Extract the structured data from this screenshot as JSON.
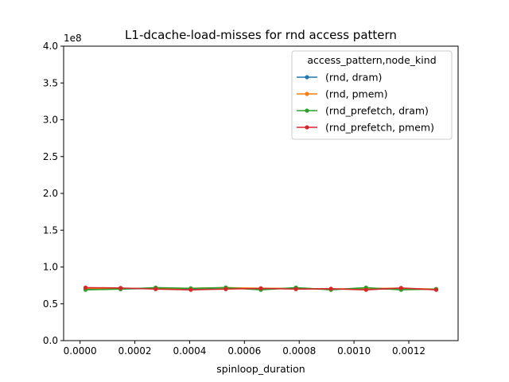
{
  "chart_data": {
    "type": "line",
    "title": "L1-dcache-load-misses for rnd access pattern",
    "xlabel": "spinloop_duration",
    "ylabel": "",
    "y_offset_label": "1e8",
    "xlim": [
      -6e-05,
      0.00138
    ],
    "ylim": [
      0,
      4.0
    ],
    "xticks": [
      0.0,
      0.0002,
      0.0004,
      0.0006,
      0.0008,
      0.001,
      0.0012
    ],
    "xtick_labels": [
      "0.0000",
      "0.0002",
      "0.0004",
      "0.0006",
      "0.0008",
      "0.0010",
      "0.0012"
    ],
    "yticks": [
      0.0,
      0.5,
      1.0,
      1.5,
      2.0,
      2.5,
      3.0,
      3.5,
      4.0
    ],
    "ytick_labels": [
      "0.0",
      "0.5",
      "1.0",
      "1.5",
      "2.0",
      "2.5",
      "3.0",
      "3.5",
      "4.0"
    ],
    "grid": false,
    "legend": {
      "title": "access_pattern,node_kind",
      "position": "top-right"
    },
    "x": [
      2e-05,
      0.000148,
      0.000276,
      0.000404,
      0.000532,
      0.00066,
      0.000788,
      0.000916,
      0.001044,
      0.001172,
      0.0013
    ],
    "series": [
      {
        "name": "(rnd, dram)",
        "color": "#1f77b4",
        "values": [
          0.7,
          0.7,
          0.71,
          0.7,
          0.72,
          0.7,
          0.71,
          0.7,
          0.7,
          0.7,
          0.7
        ]
      },
      {
        "name": "(rnd, pmem)",
        "color": "#ff7f0e",
        "values": [
          0.71,
          0.71,
          0.71,
          0.71,
          0.72,
          0.71,
          0.71,
          0.7,
          0.71,
          0.71,
          0.7
        ]
      },
      {
        "name": "(rnd_prefetch, dram)",
        "color": "#2ca02c",
        "values": [
          0.69,
          0.7,
          0.72,
          0.71,
          0.72,
          0.69,
          0.72,
          0.69,
          0.72,
          0.69,
          0.7
        ]
      },
      {
        "name": "(rnd_prefetch, pmem)",
        "color": "#d62728",
        "values": [
          0.72,
          0.715,
          0.7,
          0.69,
          0.7,
          0.71,
          0.7,
          0.705,
          0.69,
          0.715,
          0.69
        ]
      }
    ]
  }
}
